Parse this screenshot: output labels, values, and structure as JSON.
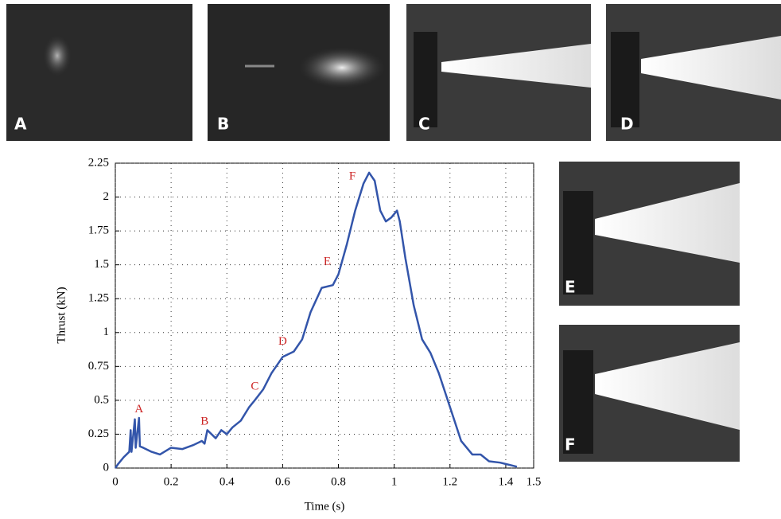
{
  "panels": [
    {
      "label": "A"
    },
    {
      "label": "B"
    },
    {
      "label": "C"
    },
    {
      "label": "D"
    },
    {
      "label": "E"
    },
    {
      "label": "F"
    }
  ],
  "chart_data": {
    "type": "line",
    "xlabel": "Time (s)",
    "ylabel": "Thrust (kN)",
    "xlim": [
      0,
      1.5
    ],
    "ylim": [
      0,
      2.25
    ],
    "xticks": [
      0,
      0.2,
      0.4,
      0.6,
      0.8,
      1,
      1.2,
      1.4,
      1.5
    ],
    "yticks": [
      0,
      0.25,
      0.5,
      0.75,
      1,
      1.25,
      1.5,
      1.75,
      2,
      2.25
    ],
    "grid": true,
    "series": [
      {
        "color": "#3355aa",
        "x": [
          0,
          0.01,
          0.03,
          0.05,
          0.055,
          0.058,
          0.07,
          0.073,
          0.085,
          0.088,
          0.1,
          0.13,
          0.16,
          0.2,
          0.24,
          0.28,
          0.31,
          0.32,
          0.33,
          0.36,
          0.38,
          0.4,
          0.42,
          0.45,
          0.48,
          0.5,
          0.53,
          0.56,
          0.6,
          0.64,
          0.67,
          0.7,
          0.74,
          0.78,
          0.8,
          0.83,
          0.86,
          0.89,
          0.91,
          0.93,
          0.95,
          0.97,
          0.99,
          1.01,
          1.02,
          1.04,
          1.07,
          1.1,
          1.13,
          1.16,
          1.2,
          1.24,
          1.28,
          1.31,
          1.34,
          1.38,
          1.42,
          1.44
        ],
        "values": [
          0,
          0.03,
          0.08,
          0.12,
          0.28,
          0.12,
          0.36,
          0.15,
          0.37,
          0.16,
          0.15,
          0.12,
          0.1,
          0.15,
          0.14,
          0.17,
          0.2,
          0.18,
          0.28,
          0.22,
          0.28,
          0.25,
          0.3,
          0.35,
          0.45,
          0.5,
          0.58,
          0.7,
          0.82,
          0.86,
          0.95,
          1.15,
          1.33,
          1.35,
          1.43,
          1.65,
          1.9,
          2.1,
          2.18,
          2.12,
          1.9,
          1.82,
          1.85,
          1.9,
          1.82,
          1.55,
          1.2,
          0.95,
          0.85,
          0.7,
          0.45,
          0.2,
          0.1,
          0.1,
          0.05,
          0.04,
          0.02,
          0.01
        ]
      }
    ],
    "annotations": [
      {
        "text": "A",
        "x": 0.085,
        "y": 0.43
      },
      {
        "text": "B",
        "x": 0.32,
        "y": 0.34
      },
      {
        "text": "C",
        "x": 0.5,
        "y": 0.6
      },
      {
        "text": "D",
        "x": 0.6,
        "y": 0.93
      },
      {
        "text": "E",
        "x": 0.76,
        "y": 1.52
      },
      {
        "text": "F",
        "x": 0.85,
        "y": 2.15
      }
    ],
    "annotation_color": "#cc2222"
  }
}
